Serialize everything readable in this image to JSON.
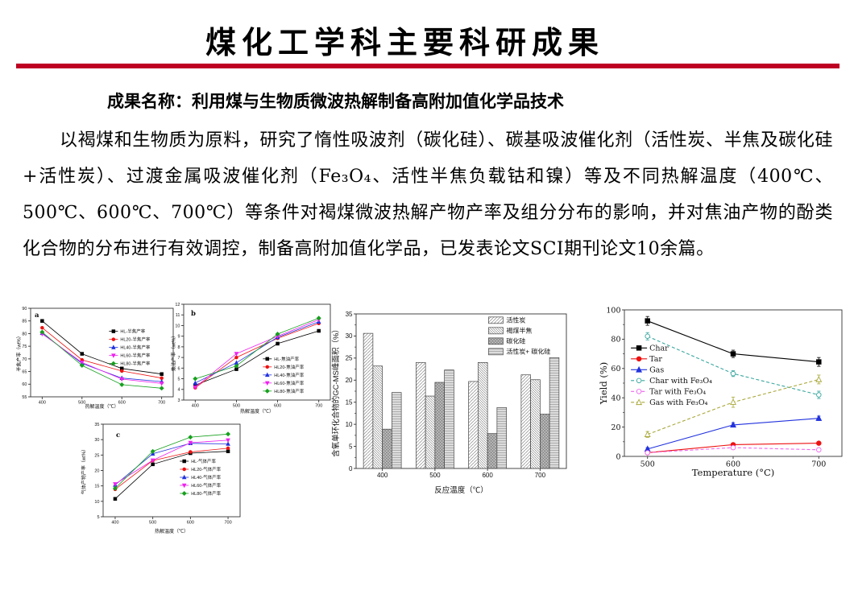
{
  "slide": {
    "title": "煤化工学科主要科研成果",
    "subtitle": "成果名称：利用煤与生物质微波热解制备高附加值化学品技术",
    "paragraph": "以褐煤和生物质为原料，研究了惰性吸波剂（碳化硅）、碳基吸波催化剂（活性炭、半焦及碳化硅+活性炭）、过渡金属吸波催化剂（Fe₃O₄、活性半焦负载钴和镍）等及不同热解温度（400℃、500℃、600℃、700℃）等条件对褐煤微波热解产物产率及组分分布的影响，并对焦油产物的酚类化合物的分布进行有效调控，制备高附加值化学品，已发表论文SCI期刊论文10余篇。",
    "accent_color": "#be0023"
  },
  "chart_data": [
    {
      "id": "semicoke-yield",
      "type": "line",
      "panel_label": "a",
      "x": [
        400,
        500,
        600,
        700
      ],
      "xlabel": "热解温度（℃）",
      "ylabel": "半焦产率（wt%）",
      "ylim": [
        55,
        90
      ],
      "ytick_step": 5,
      "legend": {
        "x": 0.55,
        "y": 0.26
      },
      "series": [
        {
          "name": "HL-半焦产率",
          "color": "#000000",
          "marker": "square",
          "values": [
            85.0,
            72.0,
            66.2,
            64.0
          ]
        },
        {
          "name": "HL20-半焦产率",
          "color": "#ee1111",
          "marker": "circle",
          "values": [
            82.3,
            69.6,
            65.2,
            62.4
          ]
        },
        {
          "name": "HL40-半焦产率",
          "color": "#2233dd",
          "marker": "triangle",
          "values": [
            80.2,
            68.2,
            62.4,
            61.0
          ]
        },
        {
          "name": "HL60-半焦产率",
          "color": "#ee22ee",
          "marker": "tridown",
          "values": [
            79.9,
            68.6,
            62.0,
            60.3
          ]
        },
        {
          "name": "HL80-半焦产率",
          "color": "#16a01e",
          "marker": "diamond",
          "values": [
            80.6,
            67.4,
            59.8,
            58.4
          ]
        }
      ]
    },
    {
      "id": "tar-yield",
      "type": "line",
      "panel_label": "b",
      "x": [
        400,
        500,
        600,
        700
      ],
      "xlabel": "热解温度（℃）",
      "ylabel": "焦油产率（wt%）",
      "ylim": [
        3,
        12
      ],
      "ytick_step": 1,
      "legend": {
        "x": 0.54,
        "y": 0.57
      },
      "series": [
        {
          "name": "HL-焦油产率",
          "color": "#000000",
          "marker": "square",
          "values": [
            4.4,
            5.9,
            8.3,
            9.5
          ]
        },
        {
          "name": "HL20-焦油产率",
          "color": "#ee1111",
          "marker": "circle",
          "values": [
            4.15,
            7.0,
            8.8,
            10.2
          ]
        },
        {
          "name": "HL40-焦油产率",
          "color": "#2233dd",
          "marker": "triangle",
          "values": [
            4.6,
            6.5,
            8.9,
            10.35
          ]
        },
        {
          "name": "HL60-焦油产率",
          "color": "#ee22ee",
          "marker": "tridown",
          "values": [
            4.2,
            7.35,
            9.0,
            10.55
          ]
        },
        {
          "name": "HL80-焦油产率",
          "color": "#16a01e",
          "marker": "diamond",
          "values": [
            5.0,
            6.2,
            9.2,
            10.7
          ]
        }
      ]
    },
    {
      "id": "gas-yield",
      "type": "line",
      "panel_label": "c",
      "x": [
        400,
        500,
        600,
        700
      ],
      "xlabel": "热解温度（℃）",
      "ylabel": "气体产物产率（wt%）",
      "ylim": [
        5,
        35
      ],
      "ytick_step": 5,
      "legend": {
        "x": 0.56,
        "y": 0.4
      },
      "series": [
        {
          "name": "HL-气体产率",
          "color": "#000000",
          "marker": "square",
          "values": [
            10.8,
            22.0,
            25.6,
            26.2
          ]
        },
        {
          "name": "HL20-气体产率",
          "color": "#ee1111",
          "marker": "circle",
          "values": [
            13.9,
            23.2,
            26.0,
            27.2
          ]
        },
        {
          "name": "HL40-气体产率",
          "color": "#2233dd",
          "marker": "triangle",
          "values": [
            15.3,
            25.4,
            28.8,
            28.6
          ]
        },
        {
          "name": "HL60-气体产率",
          "color": "#ee22ee",
          "marker": "tridown",
          "values": [
            15.6,
            23.3,
            29.0,
            29.8
          ]
        },
        {
          "name": "HL80-气体产率",
          "color": "#16a01e",
          "marker": "diamond",
          "values": [
            14.2,
            26.2,
            30.8,
            31.8
          ]
        }
      ]
    },
    {
      "id": "gcms-peak-area",
      "type": "bar",
      "categories": [
        "400",
        "500",
        "600",
        "700"
      ],
      "xlabel": "反应温度（℃）",
      "ylabel": "含氧单环化合物的GC-MS峰面积（%）",
      "ylim": [
        0,
        35
      ],
      "ytick_step": 5,
      "legend": {
        "x": 0.63,
        "y": 0.02
      },
      "series": [
        {
          "name": "活性炭",
          "pattern": "diag",
          "values": [
            30.6,
            24.0,
            19.7,
            21.2
          ]
        },
        {
          "name": "褐煤半焦",
          "pattern": "diag2",
          "values": [
            23.2,
            16.4,
            24.0,
            20.1
          ]
        },
        {
          "name": "碳化硅",
          "pattern": "cross",
          "values": [
            8.9,
            19.5,
            7.9,
            12.3
          ]
        },
        {
          "name": "活性炭+ 碳化硅",
          "pattern": "horiz",
          "values": [
            17.2,
            22.3,
            13.8,
            25.1
          ]
        }
      ]
    },
    {
      "id": "yield-temperature",
      "type": "line",
      "x": [
        500,
        600,
        700
      ],
      "xlabel": "Temperature (°C)",
      "ylabel": "Yield (%)",
      "ylim": [
        0,
        100
      ],
      "ytick_step": 20,
      "legend": {
        "x": 0.03,
        "y": 0.26
      },
      "series": [
        {
          "name": "Char",
          "color": "#000000",
          "marker": "square",
          "values": [
            92.5,
            70.0,
            64.5
          ],
          "err": [
            3,
            2.5,
            3
          ]
        },
        {
          "name": "Tar",
          "color": "#ee1111",
          "marker": "circle",
          "values": [
            2.5,
            8.0,
            9.0
          ],
          "err": [
            1,
            1,
            1
          ]
        },
        {
          "name": "Gas",
          "color": "#2233dd",
          "marker": "triangle",
          "values": [
            5.0,
            21.5,
            26.0
          ],
          "err": [
            1,
            1.5,
            1.5
          ]
        },
        {
          "name": "Char with Fe₃O₄",
          "color": "#3aa79f",
          "marker": "circle",
          "open": true,
          "dash": true,
          "values": [
            82.0,
            56.5,
            42.0
          ],
          "err": [
            2.5,
            2,
            2.5
          ]
        },
        {
          "name": "Tar with Fe₃O₄",
          "color": "#ee66ee",
          "marker": "circle",
          "open": true,
          "dash": true,
          "values": [
            2.5,
            6.0,
            4.5
          ],
          "err": [
            1,
            1,
            1
          ]
        },
        {
          "name": "Gas with Fe₃O₄",
          "color": "#a9a83b",
          "marker": "triangle",
          "open": true,
          "dash": true,
          "values": [
            15.0,
            37.0,
            52.5
          ],
          "err": [
            2,
            3.5,
            3
          ]
        }
      ]
    }
  ]
}
